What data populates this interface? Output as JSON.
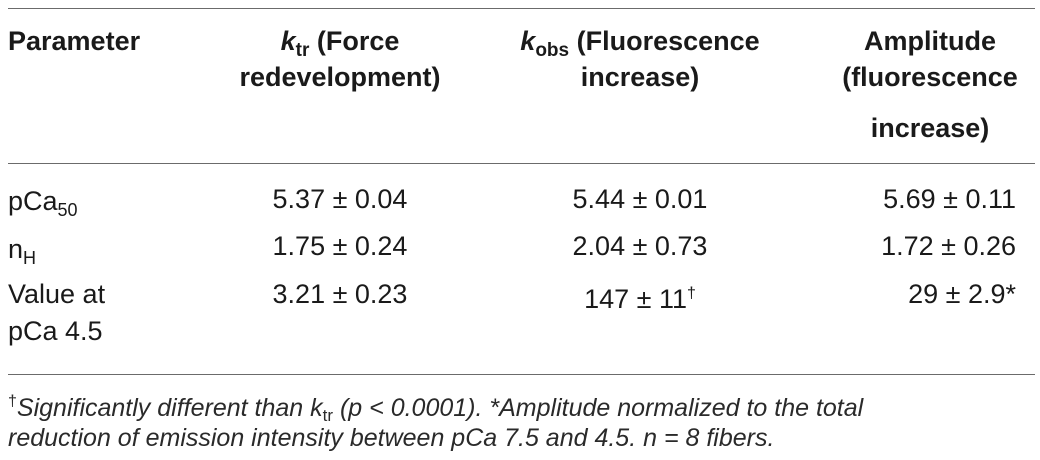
{
  "header": {
    "parameter": "Parameter",
    "ktr_k": "k",
    "ktr_sub": "tr",
    "ktr_rest": " (Force",
    "ktr_line2": "redevelopment)",
    "kobs_k": "k",
    "kobs_sub": "obs",
    "kobs_rest": " (Fluorescence",
    "kobs_line2": "increase)",
    "amp_line1": "Amplitude",
    "amp_line2": "(fluorescence",
    "amp_line3": "increase)"
  },
  "rows": [
    {
      "label_main": "pCa",
      "label_sub": "50",
      "ktr": "5.37 ± 0.04",
      "kobs": "5.44 ± 0.01",
      "amp": "5.69 ± 0.11"
    },
    {
      "label_main": "n",
      "label_sub": "H",
      "ktr": "1.75 ± 0.24",
      "kobs": "2.04 ± 0.73",
      "amp": "1.72 ± 0.26"
    },
    {
      "label_line1": "Value at",
      "label_line2": "pCa 4.5",
      "ktr": "3.21 ± 0.23",
      "kobs": "147 ± 11",
      "kobs_mark": "†",
      "amp": "29 ± 2.9*"
    }
  ],
  "footnote": {
    "dagger": "†",
    "text1": "Significantly different than k",
    "sub": "tr",
    "text2": " (p < 0.0001). *Amplitude normalized to the total",
    "line2": "reduction of emission intensity between pCa 7.5 and 4.5. n = 8 fibers."
  }
}
